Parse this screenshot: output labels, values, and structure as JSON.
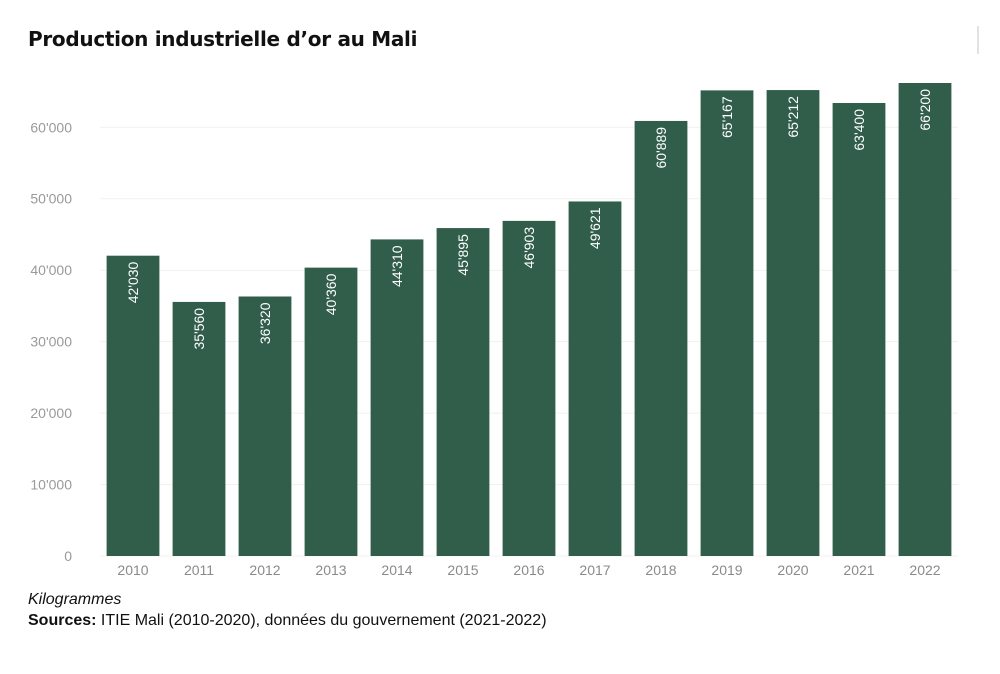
{
  "chart_data": {
    "type": "bar",
    "title": "Production industrielle d’or au Mali",
    "categories": [
      "2010",
      "2011",
      "2012",
      "2013",
      "2014",
      "2015",
      "2016",
      "2017",
      "2018",
      "2019",
      "2020",
      "2021",
      "2022"
    ],
    "values": [
      42030,
      35560,
      36320,
      40360,
      44310,
      45895,
      46903,
      49621,
      60889,
      65167,
      65212,
      63400,
      66200
    ],
    "value_labels": [
      "42'030",
      "35'560",
      "36'320",
      "40'360",
      "44'310",
      "45'895",
      "46'903",
      "49'621",
      "60'889",
      "65'167",
      "65'212",
      "63'400",
      "66'200"
    ],
    "ylim": [
      0,
      66200
    ],
    "yticks": [
      0,
      10000,
      20000,
      30000,
      40000,
      50000,
      60000
    ],
    "ytick_labels": [
      "0",
      "10'000",
      "20'000",
      "30'000",
      "40'000",
      "50'000",
      "60'000"
    ],
    "xlabel": "",
    "ylabel": "",
    "grid": true,
    "bar_color": "#315e4b"
  },
  "footer": {
    "unit": "Kilogrammes",
    "source_label": "Sources:",
    "source_text": " ITIE Mali (2010-2020), données du gouvernement (2021-2022)"
  }
}
